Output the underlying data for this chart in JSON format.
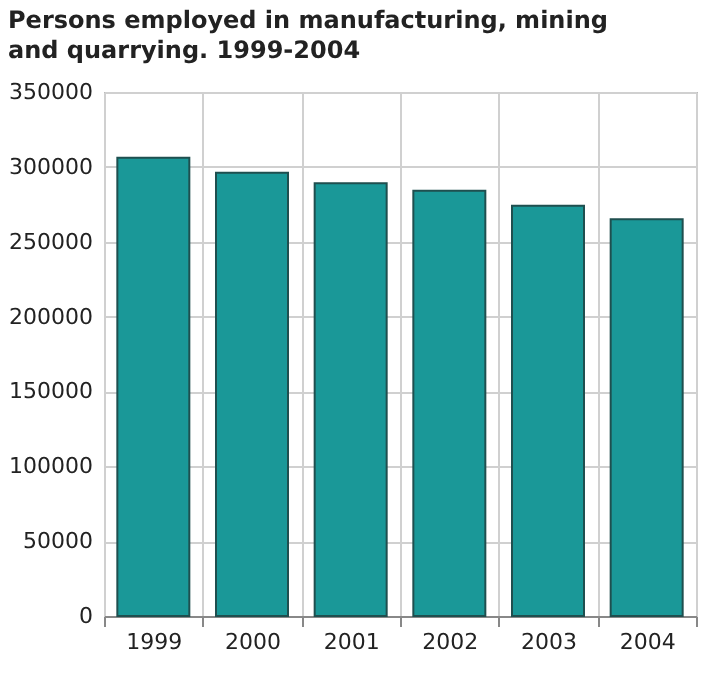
{
  "chart_data": {
    "type": "bar",
    "title": "Persons employed in manufacturing, mining and quarrying. 1999-2004",
    "categories": [
      "1999",
      "2000",
      "2001",
      "2002",
      "2003",
      "2004"
    ],
    "values": [
      306000,
      296000,
      289000,
      284000,
      274000,
      265000
    ],
    "color": "#1a9898",
    "ylim": [
      0,
      350000
    ],
    "yticks": [
      0,
      50000,
      100000,
      150000,
      200000,
      250000,
      300000,
      350000
    ],
    "grid": true
  }
}
